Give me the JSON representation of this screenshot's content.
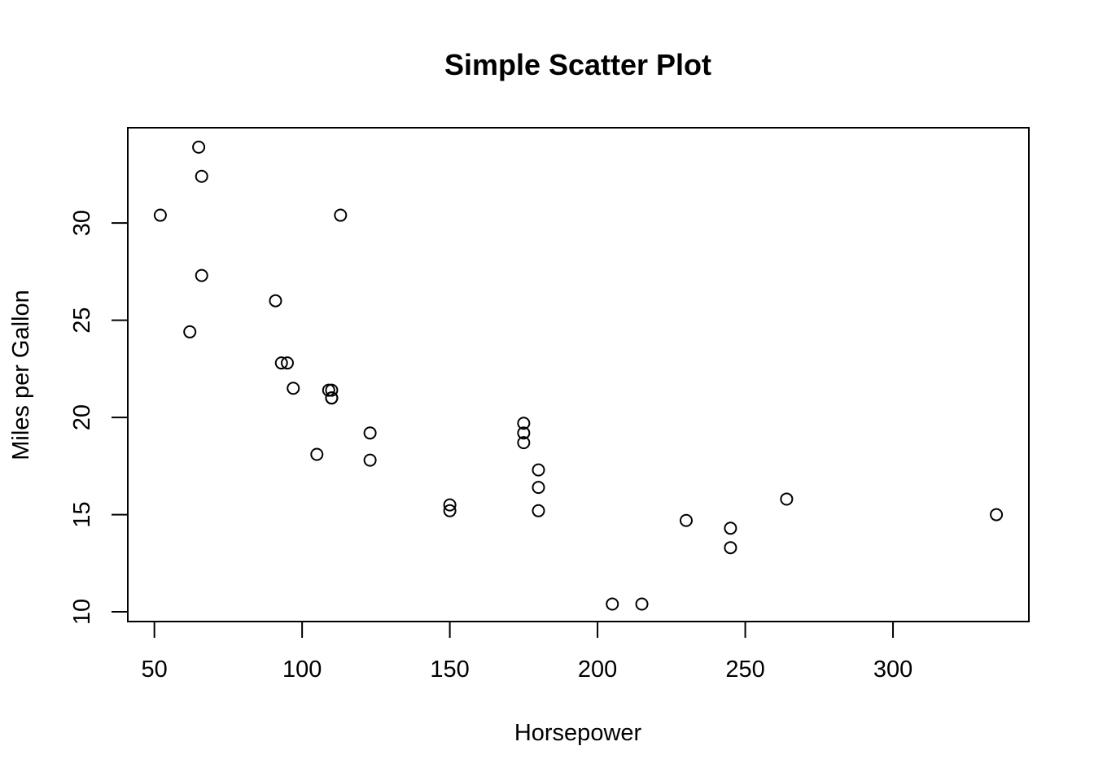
{
  "chart_data": {
    "type": "scatter",
    "title": "Simple Scatter Plot",
    "xlabel": "Horsepower",
    "ylabel": "Miles per Gallon",
    "xlim": [
      41,
      346
    ],
    "ylim": [
      9.5,
      34.9
    ],
    "x_ticks": [
      50,
      100,
      150,
      200,
      250,
      300
    ],
    "y_ticks": [
      10,
      15,
      20,
      25,
      30
    ],
    "x_tick_labels": [
      "50",
      "100",
      "150",
      "200",
      "250",
      "300"
    ],
    "y_tick_labels": [
      "10",
      "15",
      "20",
      "25",
      "30"
    ],
    "grid": false,
    "legend": "none",
    "marker": "open-circle",
    "point_color": "#000000",
    "x": [
      110,
      110,
      93,
      110,
      175,
      105,
      245,
      62,
      95,
      123,
      123,
      180,
      180,
      180,
      205,
      215,
      230,
      66,
      52,
      65,
      97,
      150,
      150,
      245,
      175,
      66,
      91,
      113,
      264,
      175,
      335,
      109
    ],
    "y": [
      21.0,
      21.0,
      22.8,
      21.4,
      18.7,
      18.1,
      14.3,
      24.4,
      22.8,
      19.2,
      17.8,
      16.4,
      17.3,
      15.2,
      10.4,
      10.4,
      14.7,
      32.4,
      30.4,
      33.9,
      21.5,
      15.5,
      15.2,
      13.3,
      19.2,
      27.3,
      26.0,
      30.4,
      15.8,
      19.7,
      15.0,
      21.4
    ]
  }
}
